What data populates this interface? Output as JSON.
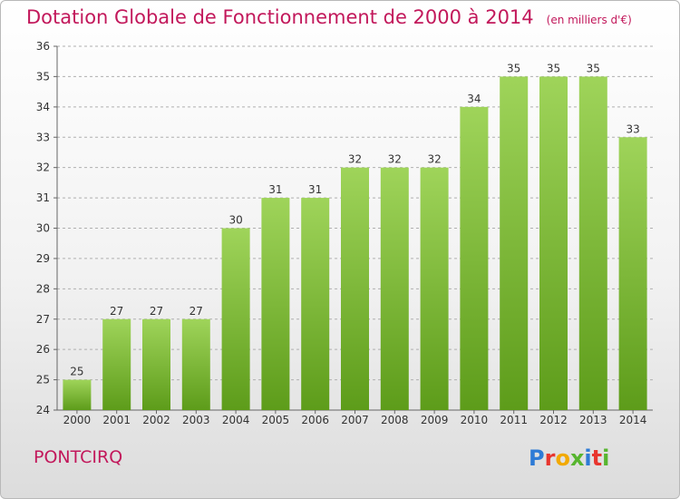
{
  "header": {
    "title": "Dotation Globale de Fonctionnement de 2000 à 2014",
    "unit": "(en milliers d'€)"
  },
  "footer": {
    "commune": "PONTCIRQ",
    "logo_letters": [
      {
        "ch": "P",
        "color": "#2e7bd6"
      },
      {
        "ch": "r",
        "color": "#e8352e"
      },
      {
        "ch": "o",
        "color": "#f2a900"
      },
      {
        "ch": "x",
        "color": "#57b52f"
      },
      {
        "ch": "i",
        "color": "#2e7bd6"
      },
      {
        "ch": "t",
        "color": "#e8352e"
      },
      {
        "ch": "i",
        "color": "#57b52f"
      }
    ]
  },
  "colors": {
    "bar_top": "#9fd45a",
    "bar_bottom": "#5d9c1a",
    "title": "#c2185b",
    "grid": "#b0b0b0"
  },
  "chart_data": {
    "type": "bar",
    "categories": [
      "2000",
      "2001",
      "2002",
      "2003",
      "2004",
      "2005",
      "2006",
      "2007",
      "2008",
      "2009",
      "2010",
      "2011",
      "2012",
      "2013",
      "2014"
    ],
    "values": [
      25,
      27,
      27,
      27,
      30,
      31,
      31,
      32,
      32,
      32,
      34,
      35,
      35,
      35,
      33
    ],
    "ylim": [
      24,
      36
    ],
    "yticks": [
      24,
      25,
      26,
      27,
      28,
      29,
      30,
      31,
      32,
      33,
      34,
      35,
      36
    ],
    "grid": true,
    "data_labels": true
  }
}
